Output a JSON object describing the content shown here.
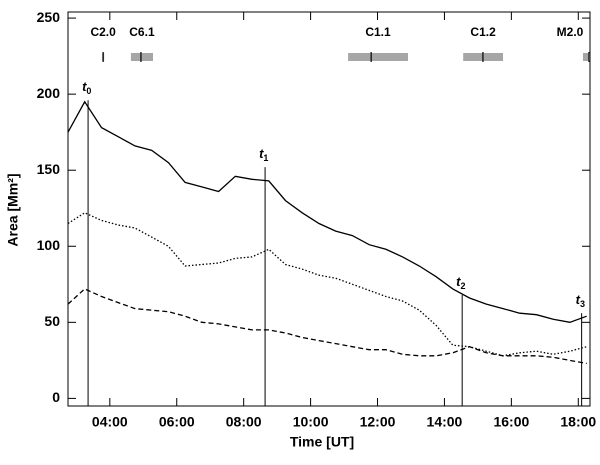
{
  "chart_data": {
    "type": "line",
    "x_label": "Time   [UT]",
    "y_label": "Area  [Mm²]",
    "xlim": [
      2.75,
      18.35
    ],
    "xticks": [
      {
        "value": 4,
        "label": "04:00"
      },
      {
        "value": 6,
        "label": "06:00"
      },
      {
        "value": 8,
        "label": "08:00"
      },
      {
        "value": 10,
        "label": "10:00"
      },
      {
        "value": 12,
        "label": "12:00"
      },
      {
        "value": 14,
        "label": "14:00"
      },
      {
        "value": 16,
        "label": "16:00"
      },
      {
        "value": 18,
        "label": "18:00"
      }
    ],
    "ylim": [
      -5,
      254
    ],
    "yticks": [
      0,
      50,
      100,
      150,
      200,
      250
    ],
    "x": [
      2.75,
      3.25,
      3.75,
      4.25,
      4.75,
      5.25,
      5.75,
      6.25,
      6.75,
      7.25,
      7.75,
      8.25,
      8.75,
      9.25,
      9.75,
      10.25,
      10.75,
      11.25,
      11.75,
      12.25,
      12.75,
      13.25,
      13.75,
      14.25,
      14.75,
      15.25,
      15.75,
      16.25,
      16.75,
      17.25,
      17.75,
      18.25
    ],
    "series": [
      {
        "color": "#000000",
        "style": "solid",
        "values": [
          175,
          195,
          178,
          172,
          166,
          163,
          155,
          142,
          139,
          136,
          146,
          144,
          143,
          130,
          122,
          115,
          110,
          107,
          101,
          98,
          93,
          87,
          80,
          72,
          66,
          62,
          59,
          56,
          55,
          52,
          50,
          54
        ]
      },
      {
        "color": "#000000",
        "style": "dotted",
        "values": [
          115,
          122,
          117,
          114,
          112,
          106,
          100,
          87,
          88,
          89,
          92,
          93,
          98,
          88,
          85,
          81,
          79,
          75,
          71,
          67,
          64,
          58,
          48,
          35,
          34,
          31,
          28,
          30,
          31,
          29,
          31,
          34
        ]
      },
      {
        "color": "#000000",
        "style": "dashed",
        "values": [
          62,
          72,
          67,
          63,
          59,
          58,
          57,
          54,
          50,
          49,
          47,
          45,
          45,
          43,
          40,
          38,
          36,
          34,
          32,
          32,
          29,
          28,
          28,
          30,
          34,
          30,
          28,
          28,
          28,
          27,
          25,
          23
        ]
      }
    ],
    "markers": [
      {
        "label": "t",
        "sub": "0",
        "x": 3.35,
        "y": 196
      },
      {
        "label": "t",
        "sub": "1",
        "x": 8.64,
        "y": 152
      },
      {
        "label": "t",
        "sub": "2",
        "x": 14.53,
        "y": 68
      },
      {
        "label": "t",
        "sub": "3",
        "x": 18.1,
        "y": 56
      }
    ],
    "flares": [
      {
        "label": "C2.0",
        "start": 3.77,
        "peak": 3.8,
        "end": 3.83
      },
      {
        "label": "C6.1",
        "start": 4.63,
        "peak": 4.93,
        "end": 5.29
      },
      {
        "label": "C1.1",
        "start": 11.12,
        "peak": 11.81,
        "end": 12.91
      },
      {
        "label": "C1.2",
        "start": 14.56,
        "peak": 15.15,
        "end": 15.75
      },
      {
        "label": "M2.0",
        "start": 18.14,
        "peak": 18.35,
        "end": 18.35
      }
    ],
    "flare_color": "#a6a6a6"
  }
}
